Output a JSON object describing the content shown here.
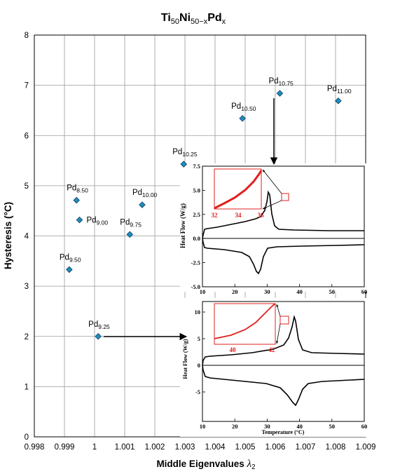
{
  "chart_data": {
    "type": "scatter",
    "title": {
      "base1": "Ti",
      "sub1": "50",
      "base2": "Ni",
      "sub2": "50−x",
      "base3": "Pd",
      "sub3": "x"
    },
    "xlabel": {
      "text": "Middle Eigenvalues ",
      "symbol": "λ",
      "sub": "2"
    },
    "ylabel": "Hysteresis (°C)",
    "xlim": [
      0.998,
      1.009
    ],
    "ylim": [
      0,
      8
    ],
    "xticks": [
      "0.998",
      "0.999",
      "1",
      "1.001",
      "1.002",
      "1.003",
      "1.004",
      "1.005",
      "1.006",
      "1.007",
      "1.008",
      "1.009"
    ],
    "yticks": [
      "0",
      "1",
      "2",
      "3",
      "4",
      "5",
      "6",
      "7",
      "8"
    ],
    "grid": true,
    "marker_color": "#1a8fc4",
    "points": [
      {
        "base": "Pd",
        "sub": "8.50",
        "x": 0.9994,
        "y": 4.71
      },
      {
        "base": "Pd",
        "sub": "9.00",
        "x": 0.9995,
        "y": 4.32
      },
      {
        "base": "Pd",
        "sub": "9.25",
        "x": 1.00012,
        "y": 2.0
      },
      {
        "base": "Pd",
        "sub": "9.50",
        "x": 0.99916,
        "y": 3.33
      },
      {
        "base": "Pd",
        "sub": "9.75",
        "x": 1.00117,
        "y": 4.03
      },
      {
        "base": "Pd",
        "sub": "10.00",
        "x": 1.00158,
        "y": 4.62
      },
      {
        "base": "Pd",
        "sub": "10.25",
        "x": 1.00296,
        "y": 5.43
      },
      {
        "base": "Pd",
        "sub": "10.50",
        "x": 1.00491,
        "y": 6.34
      },
      {
        "base": "Pd",
        "sub": "10.75",
        "x": 1.00615,
        "y": 6.84
      },
      {
        "base": "Pd",
        "sub": "11.00",
        "x": 1.00809,
        "y": 6.69
      }
    ],
    "insets": [
      {
        "ylabel": "Heat Flow (W/g)",
        "xlabel": "",
        "xlim": [
          10,
          60
        ],
        "ylim": [
          -5,
          7.5
        ],
        "xticks": [
          "10",
          "20",
          "30",
          "40",
          "50",
          "60"
        ],
        "yticks": [
          "-5.0",
          "-2.5",
          "0.0",
          "2.5",
          "5.0",
          "7.5"
        ],
        "peak_x": 36,
        "zoom_xticks": [
          "32",
          "34",
          "36"
        ],
        "zoom_color": "#e0201c"
      },
      {
        "ylabel": "Heat Flow (W/g)",
        "xlabel": "Temperature (°C)",
        "xlim": [
          10,
          60
        ],
        "ylim": [
          -10,
          12.5
        ],
        "xticks": [
          "10",
          "20",
          "30",
          "40",
          "50",
          "60"
        ],
        "yticks": [
          "-5",
          "0",
          "5",
          "10"
        ],
        "peak_x": 42,
        "zoom_xticks": [
          "40",
          "42"
        ],
        "zoom_color": "#e0201c"
      }
    ]
  }
}
